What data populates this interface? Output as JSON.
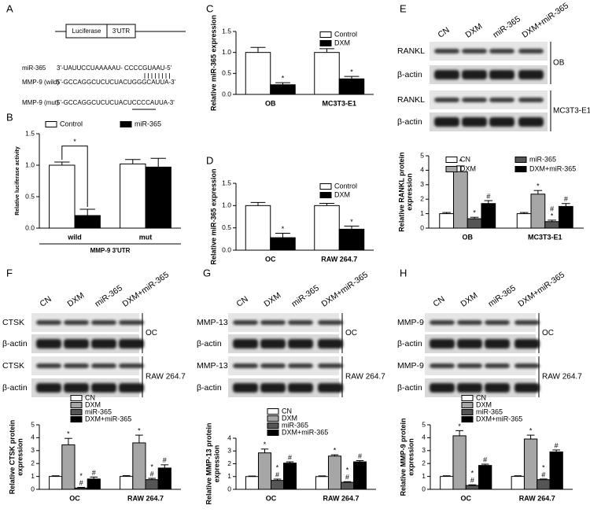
{
  "diagram": {
    "label": "A",
    "boxes": [
      "Luciferase",
      "3'UTR"
    ],
    "rows": [
      {
        "name": "miR-365",
        "sequence": "3'-UAUUCCUAAAAAU-  CCCCGUAAU-5'"
      },
      {
        "name": "MMP-9 (wild)",
        "sequence": "5'-GCCAGGCUCUCUACUGGGCAUUA-3'"
      },
      {
        "name": "MMP-9 (mut)",
        "sequence": "5'-GCCAGGCUCUCUACUCCCCAUUA-3'"
      }
    ]
  },
  "blots": [
    {
      "label": "E",
      "lanes": [
        "CN",
        "DXM",
        "miR-365",
        "DXM+miR-365"
      ],
      "rows": [
        "RANKL",
        "β-actin",
        "RANKL",
        "β-actin"
      ],
      "groups": [
        "OB",
        "MC3T3-E1"
      ]
    },
    {
      "label": "F",
      "lanes": [
        "CN",
        "DXM",
        "miR-365",
        "DXM+miR-365"
      ],
      "rows": [
        "CTSK",
        "β-actin",
        "CTSK",
        "β-actin"
      ],
      "groups": [
        "OC",
        "RAW 264.7"
      ]
    },
    {
      "label": "G",
      "lanes": [
        "CN",
        "DXM",
        "miR-365",
        "DXM+miR-365"
      ],
      "rows": [
        "MMP-13",
        "β-actin",
        "MMP-13",
        "β-actin"
      ],
      "groups": [
        "OC",
        "RAW 264.7"
      ]
    },
    {
      "label": "H",
      "lanes": [
        "CN",
        "DXM",
        "miR-365",
        "DXM+miR-365"
      ],
      "rows": [
        "MMP-9",
        "β-actin",
        "MMP-9",
        "β-actin"
      ],
      "groups": [
        "OC",
        "RAW 264.7"
      ]
    }
  ],
  "chart_data": [
    {
      "type": "bar",
      "label": "B",
      "ylabel": [
        "Relative luciferase activity"
      ],
      "xlabel": "MMP-9 3'UTR",
      "categories": [
        "wild",
        "mut"
      ],
      "series": [
        {
          "name": "Control",
          "color": "#ffffff",
          "values": [
            1.0,
            1.02
          ],
          "errors": [
            0.05,
            0.07
          ],
          "annotations": [
            [],
            []
          ]
        },
        {
          "name": "miR-365",
          "color": "#000000",
          "values": [
            0.2,
            0.97
          ],
          "errors": [
            0.1,
            0.14
          ],
          "annotations": [
            [],
            []
          ]
        }
      ],
      "significance": {
        "label": "*",
        "category": 0
      },
      "ylim": [
        0,
        1.5
      ],
      "yticks": [
        {
          "value": 0,
          "label": "0.0"
        },
        {
          "value": 0.5,
          "label": "0.5"
        },
        {
          "value": 1,
          "label": "1.0"
        },
        {
          "value": 1.5,
          "label": "1.5"
        }
      ],
      "legend": {
        "position": "above",
        "columns": 2
      }
    },
    {
      "type": "bar",
      "label": "C",
      "ylabel": [
        "Relative miR-365 expression"
      ],
      "categories": [
        "OB",
        "MC3T3-E1"
      ],
      "series": [
        {
          "name": "Control",
          "color": "#ffffff",
          "values": [
            1.0,
            1.0
          ],
          "errors": [
            0.12,
            0.09
          ],
          "annotations": [
            [],
            []
          ]
        },
        {
          "name": "DXM",
          "color": "#000000",
          "values": [
            0.23,
            0.37
          ],
          "errors": [
            0.05,
            0.06
          ],
          "annotations": [
            [
              "*"
            ],
            [
              "*"
            ]
          ]
        }
      ],
      "ylim": [
        0,
        1.5
      ],
      "yticks": [
        {
          "value": 0,
          "label": "0.0"
        },
        {
          "value": 0.5,
          "label": "0.5"
        },
        {
          "value": 1,
          "label": "1.0"
        },
        {
          "value": 1.5,
          "label": "1.5"
        }
      ],
      "legend": {
        "position": "upper right",
        "columns": 1
      }
    },
    {
      "type": "bar",
      "label": "D",
      "ylabel": [
        "Relative miR-365 expression"
      ],
      "categories": [
        "OC",
        "RAW 264.7"
      ],
      "series": [
        {
          "name": "Control",
          "color": "#ffffff",
          "values": [
            1.0,
            1.0
          ],
          "errors": [
            0.07,
            0.05
          ],
          "annotations": [
            [],
            []
          ]
        },
        {
          "name": "DXM",
          "color": "#000000",
          "values": [
            0.28,
            0.47
          ],
          "errors": [
            0.1,
            0.07
          ],
          "annotations": [
            [
              "*"
            ],
            [
              "*"
            ]
          ]
        }
      ],
      "ylim": [
        0,
        1.5
      ],
      "yticks": [
        {
          "value": 0,
          "label": "0.0"
        },
        {
          "value": 0.5,
          "label": "0.5"
        },
        {
          "value": 1,
          "label": "1.0"
        },
        {
          "value": 1.5,
          "label": "1.5"
        }
      ],
      "legend": {
        "position": "upper right",
        "columns": 1
      }
    },
    {
      "type": "bar",
      "ylabel": [
        "Relative RANKL protein",
        "expression"
      ],
      "categories": [
        "OB",
        "MC3T3-E1"
      ],
      "series": [
        {
          "name": "CN",
          "color": "#ffffff",
          "values": [
            1.0,
            1.0
          ],
          "errors": [
            0.08,
            0.08
          ],
          "annotations": [
            [],
            []
          ]
        },
        {
          "name": "DXM",
          "color": "#a6a6a6",
          "values": [
            3.9,
            2.35
          ],
          "errors": [
            0.4,
            0.25
          ],
          "annotations": [
            [
              "*"
            ],
            [
              "*"
            ]
          ]
        },
        {
          "name": "miR-365",
          "color": "#555555",
          "values": [
            0.65,
            0.45
          ],
          "errors": [
            0.1,
            0.1
          ],
          "annotations": [
            [
              "*"
            ],
            [
              "#",
              "*"
            ]
          ]
        },
        {
          "name": "DXM+miR-365",
          "color": "#000000",
          "values": [
            1.7,
            1.5
          ],
          "errors": [
            0.2,
            0.2
          ],
          "annotations": [
            [
              "#"
            ],
            [
              "#"
            ]
          ]
        }
      ],
      "ylim": [
        0,
        5
      ],
      "yticks": [
        0,
        1,
        2,
        3,
        4,
        5
      ],
      "legend": {
        "position": "upper center",
        "columns": 2
      }
    },
    {
      "type": "bar",
      "ylabel": [
        "Relative CTSK protein",
        "expression"
      ],
      "categories": [
        "OC",
        "RAW 264.7"
      ],
      "series": [
        {
          "name": "CN",
          "color": "#ffffff",
          "values": [
            1.0,
            1.0
          ],
          "errors": [
            0.05,
            0.06
          ],
          "annotations": [
            [],
            []
          ]
        },
        {
          "name": "DXM",
          "color": "#a6a6a6",
          "values": [
            3.45,
            3.6
          ],
          "errors": [
            0.5,
            0.6
          ],
          "annotations": [
            [
              "*"
            ],
            [
              "*"
            ]
          ]
        },
        {
          "name": "miR-365",
          "color": "#555555",
          "values": [
            0.1,
            0.75
          ],
          "errors": [
            0.05,
            0.1
          ],
          "annotations": [
            [
              "*",
              "#"
            ],
            [
              "*",
              "#"
            ]
          ]
        },
        {
          "name": "DXM+miR-365",
          "color": "#000000",
          "values": [
            0.8,
            1.65
          ],
          "errors": [
            0.15,
            0.25
          ],
          "annotations": [
            [
              "#"
            ],
            [
              "#"
            ]
          ]
        }
      ],
      "ylim": [
        0,
        5
      ],
      "yticks": [
        0,
        1,
        2,
        3,
        4,
        5
      ],
      "legend": {
        "position": "top",
        "columns": 1
      }
    },
    {
      "type": "bar",
      "ylabel": [
        "Relative MMP-13 protein",
        "expression"
      ],
      "categories": [
        "OC",
        "RAW 264.7"
      ],
      "series": [
        {
          "name": "CN",
          "color": "#ffffff",
          "values": [
            1.0,
            1.0
          ],
          "errors": [
            0.04,
            0.05
          ],
          "annotations": [
            [],
            []
          ]
        },
        {
          "name": "DXM",
          "color": "#a6a6a6",
          "values": [
            2.85,
            2.6
          ],
          "errors": [
            0.3,
            0.1
          ],
          "annotations": [
            [
              "*"
            ],
            [
              "*"
            ]
          ]
        },
        {
          "name": "miR-365",
          "color": "#555555",
          "values": [
            0.7,
            0.55
          ],
          "errors": [
            0.1,
            0.05
          ],
          "annotations": [
            [
              "*",
              "#"
            ],
            [
              "*",
              "#"
            ]
          ]
        },
        {
          "name": "DXM+miR-365",
          "color": "#000000",
          "values": [
            2.05,
            2.15
          ],
          "errors": [
            0.1,
            0.1
          ],
          "annotations": [
            [
              "#"
            ],
            [
              "#"
            ]
          ]
        }
      ],
      "ylim": [
        0,
        4
      ],
      "yticks": [
        0,
        1,
        2,
        3,
        4
      ],
      "legend": {
        "position": "top",
        "columns": 1
      }
    },
    {
      "type": "bar",
      "ylabel": [
        "Relative MMP-9 protein",
        "expression"
      ],
      "categories": [
        "OC",
        "RAW 264.7"
      ],
      "series": [
        {
          "name": "CN",
          "color": "#ffffff",
          "values": [
            1.0,
            1.0
          ],
          "errors": [
            0.05,
            0.05
          ],
          "annotations": [
            [],
            []
          ]
        },
        {
          "name": "DXM",
          "color": "#a6a6a6",
          "values": [
            4.15,
            3.9
          ],
          "errors": [
            0.4,
            0.3
          ],
          "annotations": [
            [
              "*"
            ],
            [
              "*"
            ]
          ]
        },
        {
          "name": "miR-365",
          "color": "#555555",
          "values": [
            0.3,
            0.75
          ],
          "errors": [
            0.05,
            0.05
          ],
          "annotations": [
            [
              "*",
              "#"
            ],
            [
              "*",
              "#"
            ]
          ]
        },
        {
          "name": "DXM+miR-365",
          "color": "#000000",
          "values": [
            1.85,
            2.9
          ],
          "errors": [
            0.1,
            0.15
          ],
          "annotations": [
            [
              "#"
            ],
            [
              "#"
            ]
          ]
        }
      ],
      "ylim": [
        0,
        5
      ],
      "yticks": [
        0,
        1,
        2,
        3,
        4,
        5
      ],
      "legend": {
        "position": "top",
        "columns": 1
      }
    }
  ]
}
